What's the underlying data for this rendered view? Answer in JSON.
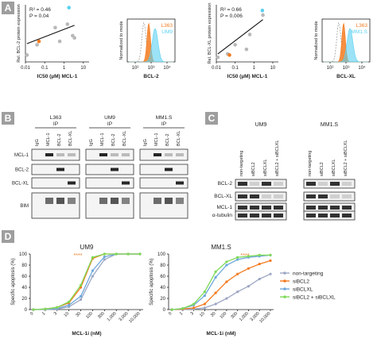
{
  "panels": {
    "A": "A",
    "B": "B",
    "C": "C",
    "D": "D"
  },
  "colors": {
    "orange": "#f47b20",
    "cyan": "#5ad1f2",
    "gray_line": "#9da7c4",
    "green": "#7ed957",
    "blue_line": "#6fa8dc",
    "panel_bg": "#9e9e9e",
    "hist_gray": "#a0a0a0"
  },
  "panelA": {
    "scatter1": {
      "r2": "R² = 0.46",
      "p": "P = 0.04",
      "ylabel": "Rel. BCL-2 protein expression",
      "xlabel": "IC50 (µM) MCL-1",
      "xticks": [
        "0.01",
        "0.1",
        "1",
        "10"
      ],
      "points": [
        {
          "x": 0.012,
          "y": 0.12,
          "c": "gray"
        },
        {
          "x": 0.04,
          "y": 0.3,
          "c": "gray"
        },
        {
          "x": 0.05,
          "y": 0.36,
          "c": "orange"
        },
        {
          "x": 0.35,
          "y": 0.6,
          "c": "gray"
        },
        {
          "x": 0.6,
          "y": 0.36,
          "c": "gray"
        },
        {
          "x": 1.8,
          "y": 0.95,
          "c": "cyan"
        },
        {
          "x": 1.5,
          "y": 0.66,
          "c": "gray"
        },
        {
          "x": 2.8,
          "y": 0.46,
          "c": "gray"
        },
        {
          "x": 3.5,
          "y": 0.42,
          "c": "gray"
        }
      ]
    },
    "hist1": {
      "ylabel": "Normalized to mode",
      "xlabel": "BCL-2",
      "xticks": [
        "10²",
        "10³",
        "10⁴"
      ],
      "legend": [
        "L363",
        "UM9"
      ]
    },
    "scatter2": {
      "r2": "R² = 0.66",
      "p": "P = 0.006",
      "ylabel": "Rel. BCL-XL protein expression",
      "xlabel": "IC50 (µM) MCL-1",
      "xticks": [
        "0.01",
        "0.1",
        "1",
        "10"
      ],
      "points": [
        {
          "x": 0.012,
          "y": 0.08,
          "c": "gray"
        },
        {
          "x": 0.04,
          "y": 0.14,
          "c": "gray"
        },
        {
          "x": 0.05,
          "y": 0.12,
          "c": "orange"
        },
        {
          "x": 0.1,
          "y": 0.3,
          "c": "gray"
        },
        {
          "x": 0.4,
          "y": 0.22,
          "c": "gray"
        },
        {
          "x": 0.6,
          "y": 0.48,
          "c": "gray"
        },
        {
          "x": 2.8,
          "y": 0.9,
          "c": "cyan"
        },
        {
          "x": 3.0,
          "y": 0.82,
          "c": "gray"
        }
      ]
    },
    "hist2": {
      "ylabel": "Normalized to mode",
      "xlabel": "BCL-XL",
      "xticks": [
        "10²",
        "10³",
        "10⁴"
      ],
      "legend": [
        "L363",
        "MM1.S"
      ]
    }
  },
  "panelB": {
    "groups": [
      {
        "title": "L363",
        "sub": "IP"
      },
      {
        "title": "UM9",
        "sub": "IP"
      },
      {
        "title": "MM1.S",
        "sub": "IP"
      }
    ],
    "lanes": [
      "IgG",
      "MCL-1",
      "BCL-2",
      "BCL-XL"
    ],
    "rows": [
      "MCL-1",
      "BCL-2",
      "BCL-XL",
      "BIM"
    ]
  },
  "panelC": {
    "groups": [
      "UM9",
      "MM1.S"
    ],
    "lanes": [
      "non-targeting",
      "siBCL2",
      "siBCLXL",
      "siBCL2 + siBCLXL"
    ],
    "rows": [
      "BCL-2",
      "BCL-XL",
      "MCL-1",
      "α-tubulin"
    ]
  },
  "panelD": {
    "ylabel": "Specific apoptosis (%)",
    "xlabel": "MCL-1i (nM)",
    "yticks": [
      "0",
      "20",
      "40",
      "60",
      "80",
      "100"
    ],
    "xticks": [
      "0",
      "1",
      "3",
      "10",
      "30",
      "100",
      "300",
      "1,000",
      "3,000",
      "10,000"
    ],
    "legend": [
      "non-targeting",
      "siBCL2",
      "siBCLXL",
      "siBCL2 + siBCLXL"
    ],
    "sig_um9": "****",
    "sig_mm1s": "****"
  },
  "chart_data": [
    {
      "type": "line",
      "title": "UM9",
      "xlabel": "MCL-1i (nM)",
      "ylabel": "Specific apoptosis (%)",
      "categories": [
        "0",
        "1",
        "3",
        "10",
        "30",
        "100",
        "300",
        "1,000",
        "3,000",
        "10,000"
      ],
      "ylim": [
        0,
        100
      ],
      "series": [
        {
          "name": "non-targeting",
          "values": [
            0,
            0,
            1,
            5,
            18,
            60,
            90,
            100,
            100,
            100
          ]
        },
        {
          "name": "siBCL2",
          "values": [
            0,
            1,
            4,
            12,
            40,
            92,
            100,
            100,
            100,
            100
          ]
        },
        {
          "name": "siBCLXL",
          "values": [
            0,
            1,
            2,
            8,
            24,
            70,
            95,
            100,
            100,
            100
          ]
        },
        {
          "name": "siBCL2 + siBCLXL",
          "values": [
            0,
            1,
            4,
            14,
            44,
            94,
            100,
            100,
            100,
            100
          ]
        }
      ]
    },
    {
      "type": "line",
      "title": "MM1.S",
      "xlabel": "MCL-1i (nM)",
      "ylabel": "Specific apoptosis (%)",
      "categories": [
        "0",
        "1",
        "3",
        "10",
        "30",
        "100",
        "300",
        "1,000",
        "3,000",
        "10,000"
      ],
      "ylim": [
        0,
        100
      ],
      "series": [
        {
          "name": "non-targeting",
          "values": [
            0,
            0,
            1,
            3,
            10,
            20,
            32,
            42,
            55,
            64
          ]
        },
        {
          "name": "siBCL2",
          "values": [
            0,
            1,
            3,
            10,
            30,
            50,
            64,
            74,
            82,
            88
          ]
        },
        {
          "name": "siBCLXL",
          "values": [
            0,
            2,
            8,
            25,
            58,
            80,
            90,
            94,
            96,
            98
          ]
        },
        {
          "name": "siBCL2 + siBCLXL",
          "values": [
            0,
            2,
            10,
            32,
            68,
            86,
            94,
            96,
            98,
            98
          ]
        }
      ]
    }
  ]
}
